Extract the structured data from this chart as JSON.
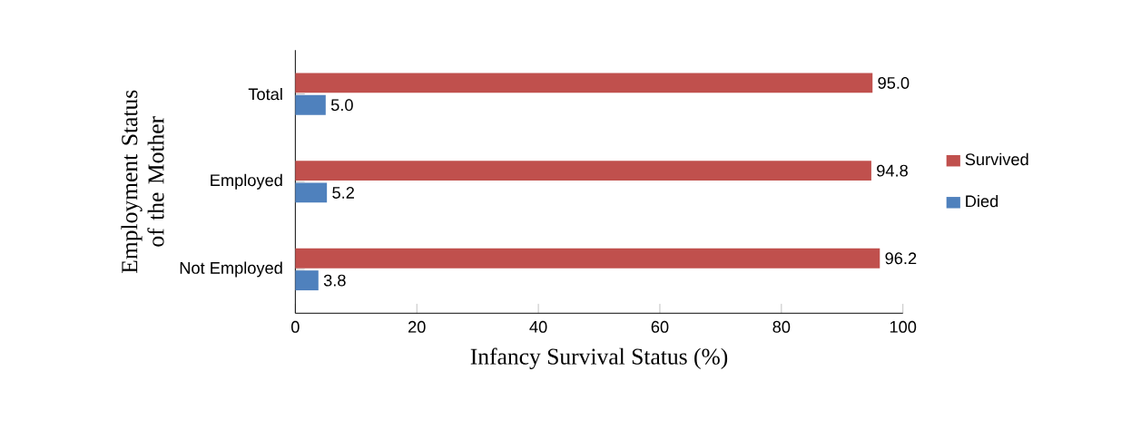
{
  "chart_data": {
    "type": "bar",
    "orientation": "horizontal",
    "xlabel": "Infancy Survival Status (%)",
    "ylabel": "Employment Status of the Mother",
    "categories": [
      "Total",
      "Employed",
      "Not Employed"
    ],
    "series": [
      {
        "name": "Survived",
        "color": "#c0504d",
        "values": [
          95.0,
          94.8,
          96.2
        ],
        "value_labels": [
          "95.0",
          "94.8",
          "96.2"
        ]
      },
      {
        "name": "Died",
        "color": "#4f81bd",
        "values": [
          5.0,
          5.2,
          3.8
        ],
        "value_labels": [
          "5.0",
          "5.2",
          "3.8"
        ]
      }
    ],
    "xlim": [
      0,
      100
    ],
    "xticks": [
      0,
      20,
      40,
      60,
      80,
      100
    ],
    "legend": "right",
    "grid": false
  }
}
